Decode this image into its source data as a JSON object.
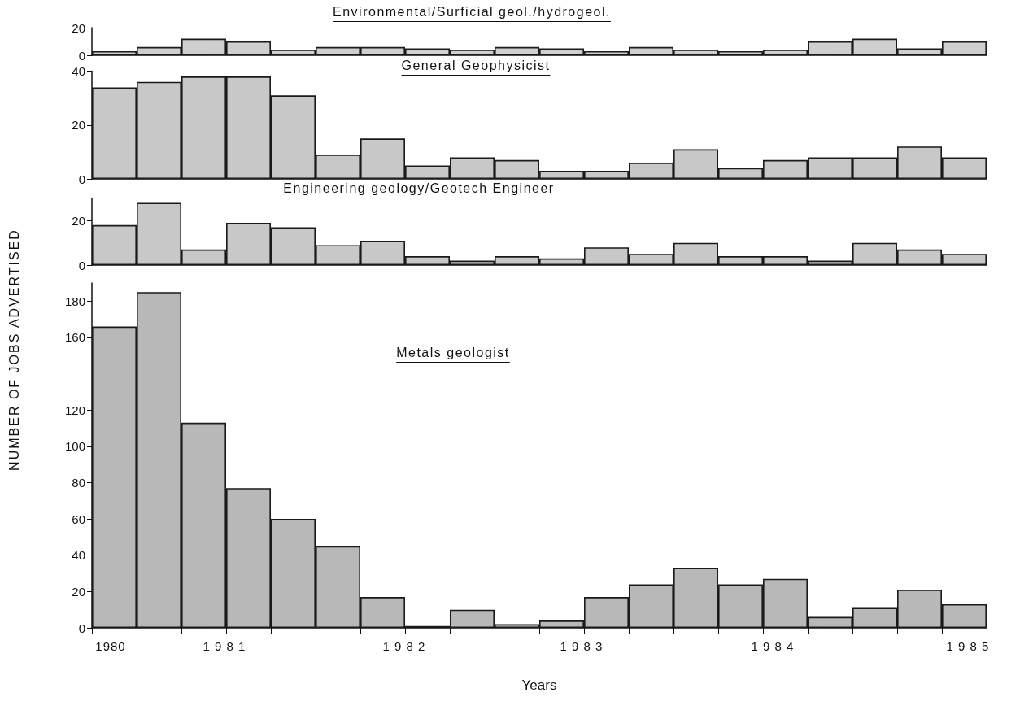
{
  "chart_data": [
    {
      "type": "bar",
      "title": "Environmental/Surficial geol./hydrogeol.",
      "categories": [
        null,
        null,
        null,
        null,
        null,
        null,
        null,
        null,
        null,
        null,
        null,
        null,
        null,
        null,
        null,
        null,
        null,
        null,
        null,
        null
      ],
      "values": [
        3,
        6,
        12,
        10,
        4,
        6,
        6,
        5,
        4,
        6,
        5,
        3,
        6,
        4,
        3,
        4,
        10,
        12,
        5,
        10
      ],
      "color": "#cfcfcf",
      "ylim": [
        0,
        20
      ],
      "yticks": [
        0,
        20
      ],
      "tick_labels": "y",
      "grid": false
    },
    {
      "type": "bar",
      "title": "General Geophysicist",
      "categories": [
        null,
        null,
        null,
        null,
        null,
        null,
        null,
        null,
        null,
        null,
        null,
        null,
        null,
        null,
        null,
        null,
        null,
        null,
        null,
        null
      ],
      "values": [
        34,
        36,
        38,
        38,
        31,
        9,
        15,
        5,
        8,
        7,
        3,
        3,
        6,
        11,
        4,
        7,
        8,
        8,
        12,
        8
      ],
      "color": "#c8c8c8",
      "ylim": [
        0,
        40
      ],
      "yticks": [
        0,
        20,
        40
      ],
      "tick_labels": "y",
      "grid": false
    },
    {
      "type": "bar",
      "title": "Engineering geology/Geotech Engineer",
      "categories": [
        null,
        null,
        null,
        null,
        null,
        null,
        null,
        null,
        null,
        null,
        null,
        null,
        null,
        null,
        null,
        null,
        null,
        null,
        null,
        null
      ],
      "values": [
        18,
        28,
        7,
        19,
        17,
        9,
        11,
        4,
        2,
        4,
        3,
        8,
        5,
        10,
        4,
        4,
        2,
        10,
        7,
        5
      ],
      "color": "#c8c8c8",
      "ylim": [
        0,
        30
      ],
      "yticks": [
        0,
        20
      ],
      "tick_labels": "y",
      "grid": false
    },
    {
      "type": "bar",
      "title": "Metals geologist",
      "xlabel": "Years",
      "ylabel": "NUMBER OF JOBS ADVERTISED",
      "categories": [
        null,
        null,
        null,
        null,
        null,
        null,
        null,
        null,
        null,
        null,
        null,
        null,
        null,
        null,
        null,
        null,
        null,
        null,
        null,
        null
      ],
      "values": [
        166,
        185,
        113,
        77,
        60,
        45,
        17,
        1,
        10,
        2,
        4,
        17,
        24,
        33,
        24,
        27,
        6,
        11,
        21,
        13
      ],
      "color": "#b8b8b8",
      "ylim": [
        0,
        190
      ],
      "yticks": [
        0,
        20,
        40,
        60,
        80,
        100,
        120,
        160,
        180
      ],
      "annotations": [
        "1980",
        "1 9 8 1",
        "1 9 8 2",
        "1 9 8 3",
        "1 9 8 4",
        "1 9 8 5"
      ],
      "grid": false
    }
  ]
}
